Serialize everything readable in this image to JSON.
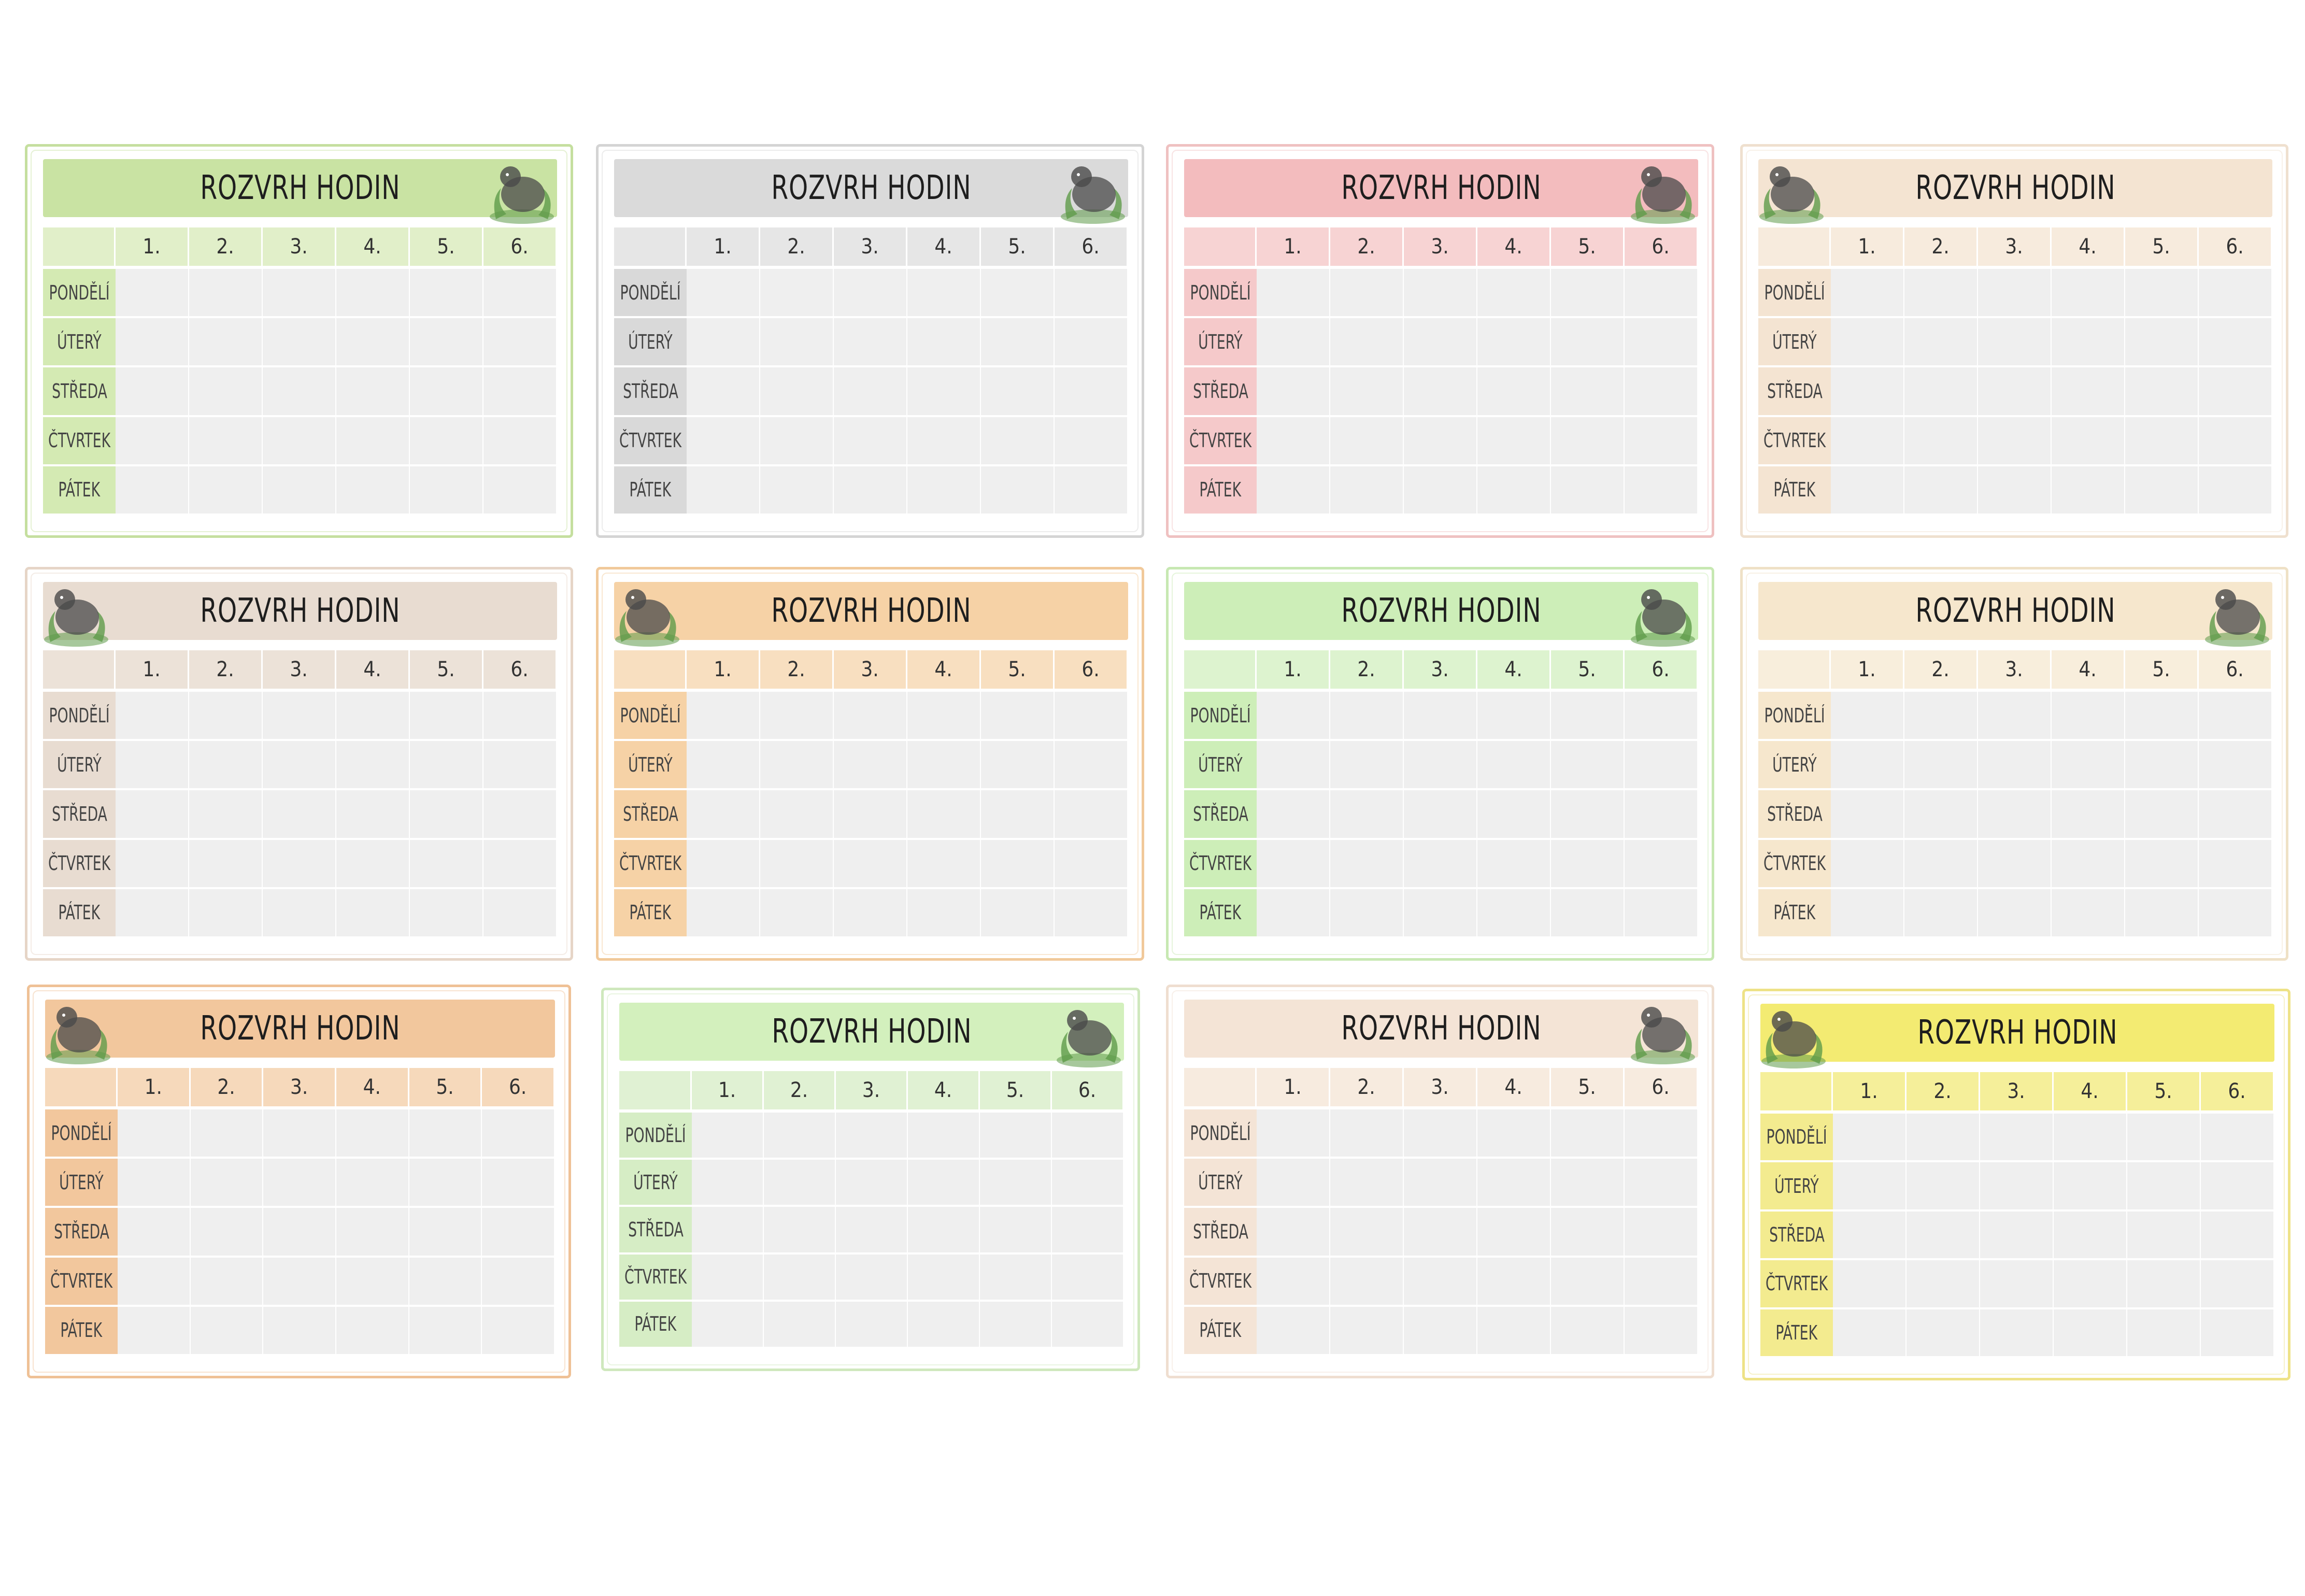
{
  "title": "ROZVRH HODIN",
  "periods": [
    "1.",
    "2.",
    "3.",
    "4.",
    "5.",
    "6."
  ],
  "days": [
    "PONDĚLÍ",
    "ÚTERÝ",
    "STŘEDA",
    "ČTVRTEK",
    "PÁTEK"
  ],
  "cards": [
    {
      "animal": "crocodile-icon",
      "animal_side": "right",
      "banner": "#c9e3a3",
      "header": "#e1efc9",
      "day": "#d4eab3",
      "frame": "#c5df9f"
    },
    {
      "animal": "zebra-icon",
      "animal_side": "right",
      "banner": "#dadada",
      "header": "#e6e6e6",
      "day": "#d9d9d9",
      "frame": "#d4d4d4"
    },
    {
      "animal": "flamingo-icon",
      "animal_side": "right",
      "banner": "#f3bcbe",
      "header": "#f7d3d3",
      "day": "#f5c9ca",
      "frame": "#efc1c1"
    },
    {
      "animal": "elephant-icon",
      "animal_side": "left",
      "banner": "#f4e4d2",
      "header": "#f7ebdd",
      "day": "#f4e4d2",
      "frame": "#efe0cf"
    },
    {
      "animal": "lion-icon",
      "animal_side": "left",
      "banner": "#e8dcd1",
      "header": "#ece2d8",
      "day": "#e8dcd1",
      "frame": "#e6d5c7"
    },
    {
      "animal": "tiger-icon",
      "animal_side": "left",
      "banner": "#f6d2a6",
      "header": "#f8dfc0",
      "day": "#f6d2a6",
      "frame": "#f1c99a"
    },
    {
      "animal": "lizard-icon",
      "animal_side": "right",
      "banner": "#cdeeb8",
      "header": "#ddf3cf",
      "day": "#cdeeb8",
      "frame": "#c7e8b2"
    },
    {
      "animal": "giraffe-icon",
      "animal_side": "right",
      "banner": "#f6e7cd",
      "header": "#f8eedc",
      "day": "#f6e7cd",
      "frame": "#efe1c6"
    },
    {
      "animal": "leopard-icon",
      "animal_side": "left",
      "banner": "#f2c79d",
      "header": "#f6d9bb",
      "day": "#f2c79d",
      "frame": "#efc196"
    },
    {
      "animal": "rhino-icon",
      "animal_side": "right",
      "banner": "#d3f0bd",
      "header": "#e0f1d3",
      "day": "#d6edc5",
      "frame": "#cfe8bd"
    },
    {
      "animal": "chimpanzee-icon",
      "animal_side": "right",
      "banner": "#f4e4d6",
      "header": "#f7ebdf",
      "day": "#f4e4d6",
      "frame": "#efded0"
    },
    {
      "animal": "toucan-icon",
      "animal_side": "left",
      "banner": "#f3eb72",
      "header": "#f5ef9a",
      "day": "#f3eb8f",
      "frame": "#eee287"
    }
  ]
}
